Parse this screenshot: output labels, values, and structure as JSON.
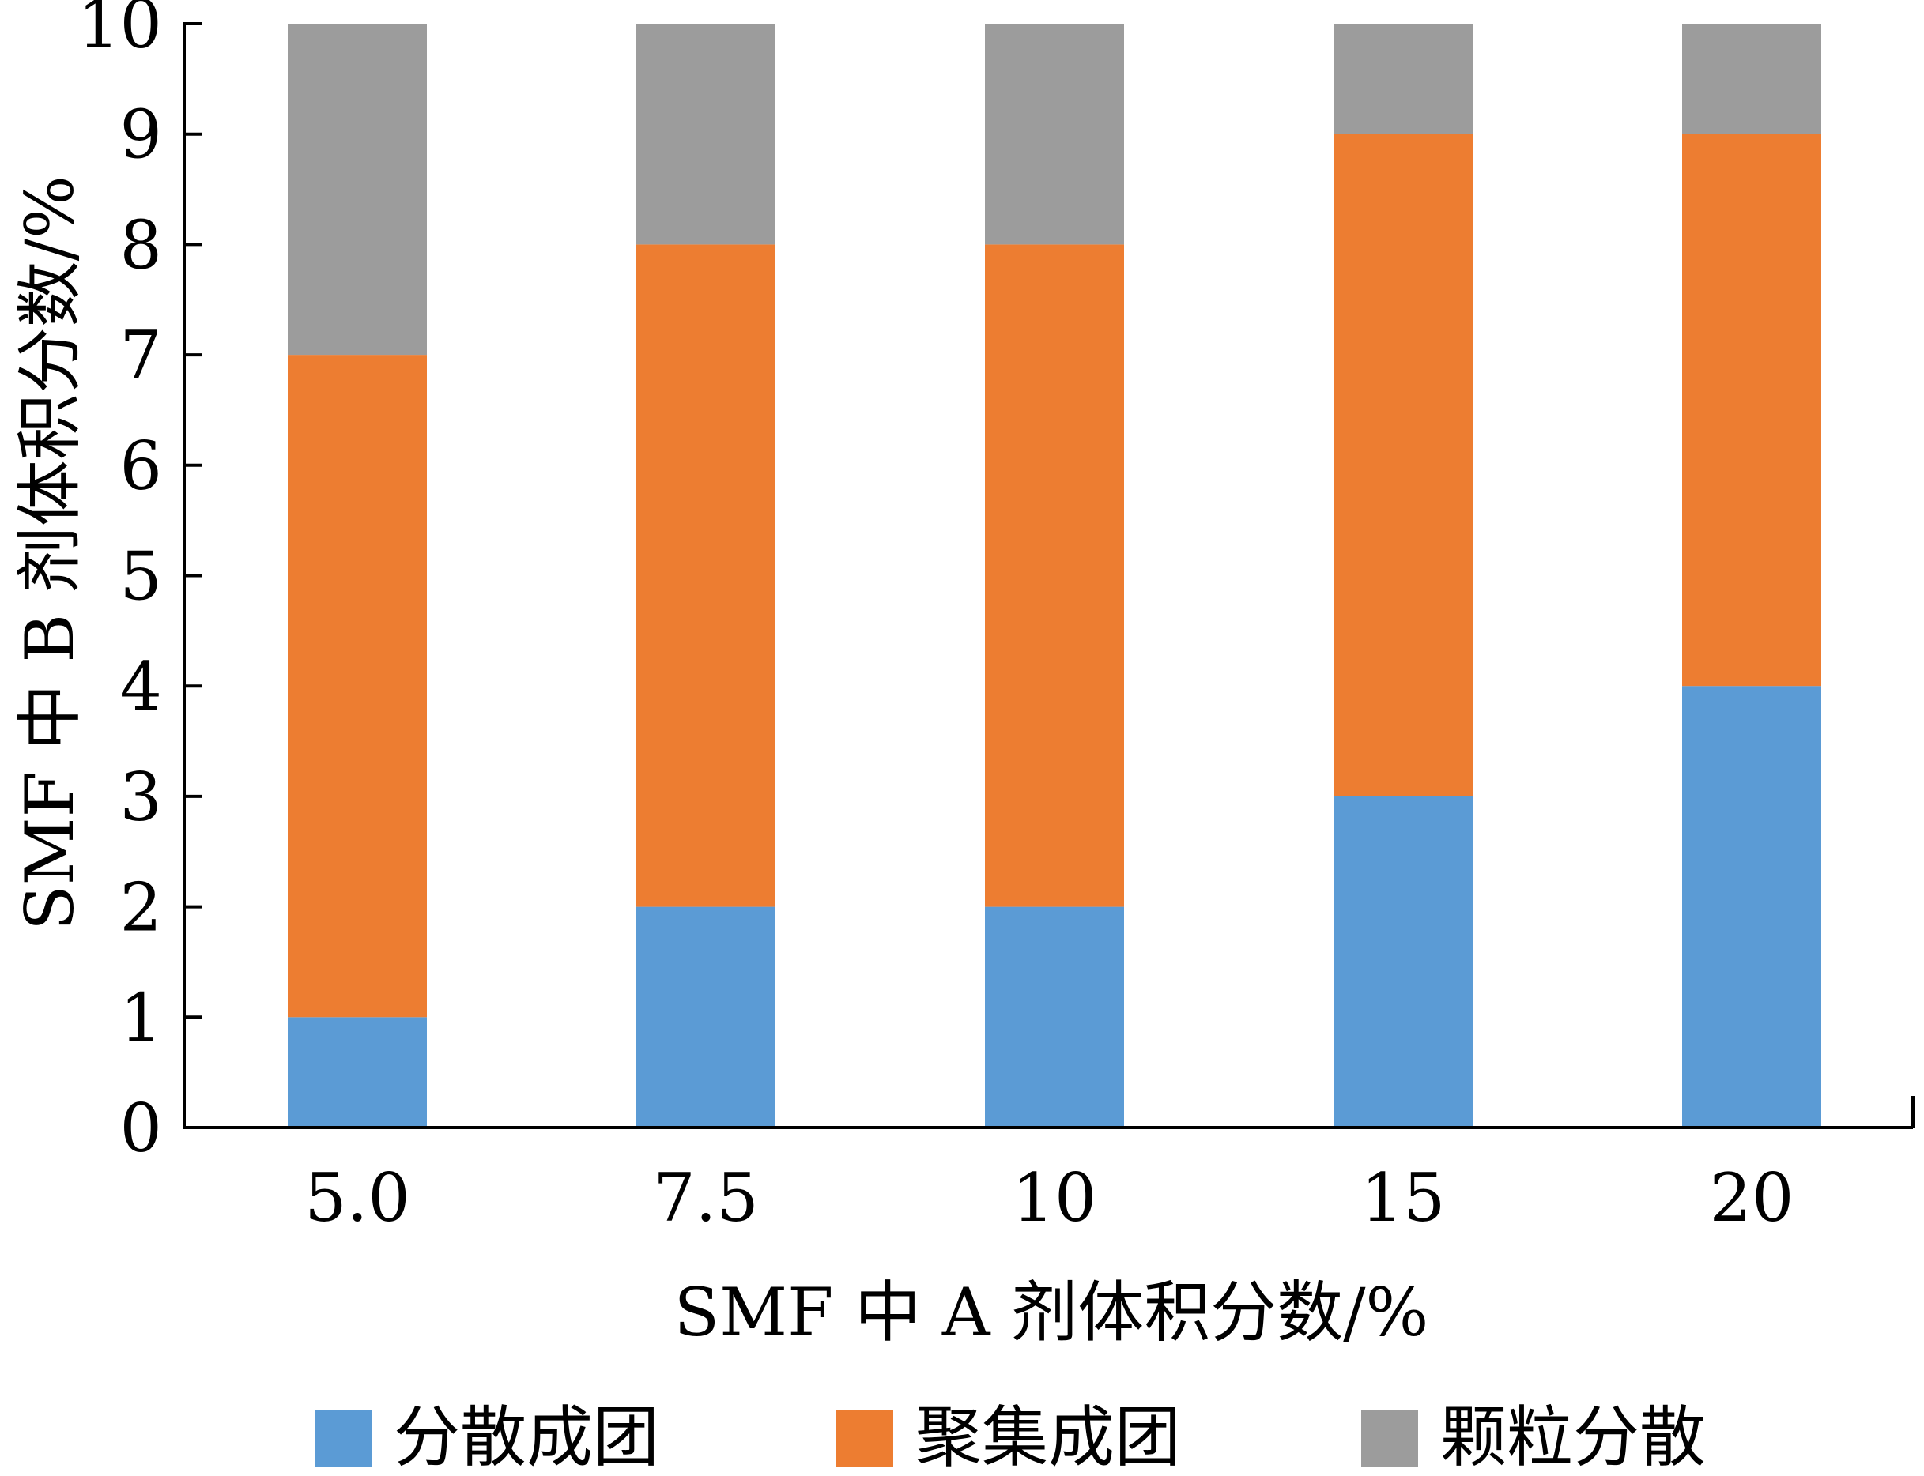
{
  "chart_data": {
    "type": "bar",
    "stacked": true,
    "categories": [
      "5.0",
      "7.5",
      "10",
      "15",
      "20"
    ],
    "series": [
      {
        "name": "分散成团",
        "values": [
          1,
          2,
          2,
          3,
          4
        ],
        "color": "#5b9bd5"
      },
      {
        "name": "聚集成团",
        "values": [
          6,
          6,
          6,
          6,
          5
        ],
        "color": "#ed7d31"
      },
      {
        "name": "颗粒分散",
        "values": [
          3,
          2,
          2,
          1,
          1
        ],
        "color": "#9c9c9c"
      }
    ],
    "title": "",
    "xlabel": "SMF 中 A 剂体积分数/%",
    "ylabel": "SMF 中 B 剂体积分数/%",
    "ylim": [
      0,
      10
    ],
    "yticks": [
      "0",
      "1",
      "2",
      "3",
      "4",
      "5",
      "6",
      "7",
      "8",
      "9",
      "10"
    ],
    "grid": false,
    "legend_position": "bottom"
  }
}
